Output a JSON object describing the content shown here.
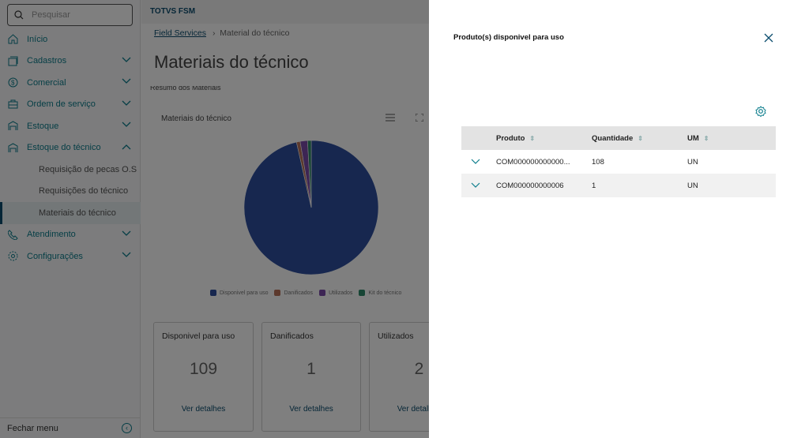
{
  "sidebar": {
    "search_placeholder": "Pesquisar",
    "items": [
      {
        "label": "Início",
        "icon": "home-icon"
      },
      {
        "label": "Cadastros",
        "icon": "cards-icon",
        "chevron": "down"
      },
      {
        "label": "Comercial",
        "icon": "dollar-icon",
        "chevron": "down"
      },
      {
        "label": "Ordem de serviço",
        "icon": "briefcase-icon",
        "chevron": "down"
      },
      {
        "label": "Estoque",
        "icon": "warehouse-icon",
        "chevron": "down"
      },
      {
        "label": "Estoque do técnico",
        "icon": "warehouse-icon",
        "chevron": "up"
      }
    ],
    "subitems": [
      "Requisição de pecas O.S",
      "Requisições do técnico",
      "Materiais do técnico"
    ],
    "items2": [
      {
        "label": "Atendimento",
        "icon": "phone-icon"
      },
      {
        "label": "Configurações",
        "icon": "gear-icon"
      }
    ],
    "close_menu": "Fechar menu"
  },
  "header": {
    "app": "TOTVS FSM"
  },
  "breadcrumb": {
    "root": "Field Services",
    "current": "Material do técnico"
  },
  "page": {
    "title": "Materiais do técnico",
    "section": "Resumo dos Materiais"
  },
  "chart_data": {
    "type": "pie",
    "title": "Materiais do técnico",
    "categories": [
      "Disponivel para uso",
      "Danificados",
      "Utilizados",
      "Kit do técnico"
    ],
    "values": [
      109,
      1,
      2,
      1
    ],
    "colors": [
      "#2e4f9e",
      "#b9735a",
      "#7a4aa8",
      "#2e8a6a"
    ],
    "legend": "bottom"
  },
  "cards": [
    {
      "label": "Disponivel para uso",
      "value": "109",
      "link": "Ver detalhes"
    },
    {
      "label": "Danificados",
      "value": "1",
      "link": "Ver detalhes"
    },
    {
      "label": "Utilizados",
      "value": "2",
      "link": "Ver detalhes"
    }
  ],
  "drawer": {
    "title": "Produto(s) disponivel para uso",
    "columns": [
      "Produto",
      "Quantidade",
      "UM"
    ],
    "rows": [
      {
        "produto": "COM000000000000...",
        "quantidade": "108",
        "um": "UN"
      },
      {
        "produto": "COM000000000006",
        "quantidade": "1",
        "um": "UN"
      }
    ]
  }
}
